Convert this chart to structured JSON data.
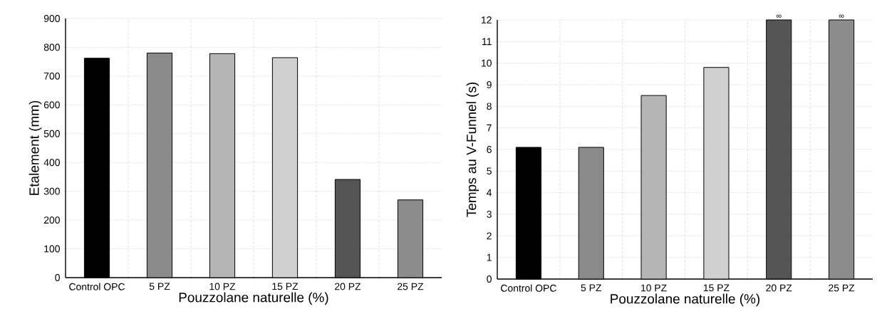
{
  "chart_data": [
    {
      "type": "bar",
      "xlabel": "Pouzzolane naturelle (%)",
      "ylabel": "Etalement (mm)",
      "categories": [
        "Control OPC",
        "5 PZ",
        "10 PZ",
        "15 PZ",
        "20 PZ",
        "25 PZ"
      ],
      "values": [
        762,
        780,
        778,
        764,
        341,
        270
      ],
      "colors": [
        "#000000",
        "#8a8a8a",
        "#b5b5b5",
        "#d0d0d0",
        "#555555",
        "#8c8c8c"
      ],
      "ylim": [
        0,
        900
      ],
      "yticks": [
        0,
        100,
        200,
        300,
        400,
        500,
        600,
        700,
        800,
        900
      ],
      "grid": true
    },
    {
      "type": "bar",
      "xlabel": "Pouzzolane naturelle (%)",
      "ylabel": "Temps au V-Funnel (s)",
      "categories": [
        "Control OPC",
        "5 PZ",
        "10 PZ",
        "15 PZ",
        "20 PZ",
        "25 PZ"
      ],
      "values": [
        6.1,
        6.1,
        8.5,
        9.8,
        12,
        12
      ],
      "value_labels": [
        null,
        null,
        null,
        null,
        "∞",
        "∞"
      ],
      "colors": [
        "#000000",
        "#8a8a8a",
        "#b5b5b5",
        "#d0d0d0",
        "#555555",
        "#8c8c8c"
      ],
      "ylim": [
        0,
        12
      ],
      "yticks": [
        0,
        1,
        2,
        3,
        4,
        5,
        6,
        7,
        8,
        9,
        10,
        11,
        12
      ],
      "grid": true
    }
  ]
}
